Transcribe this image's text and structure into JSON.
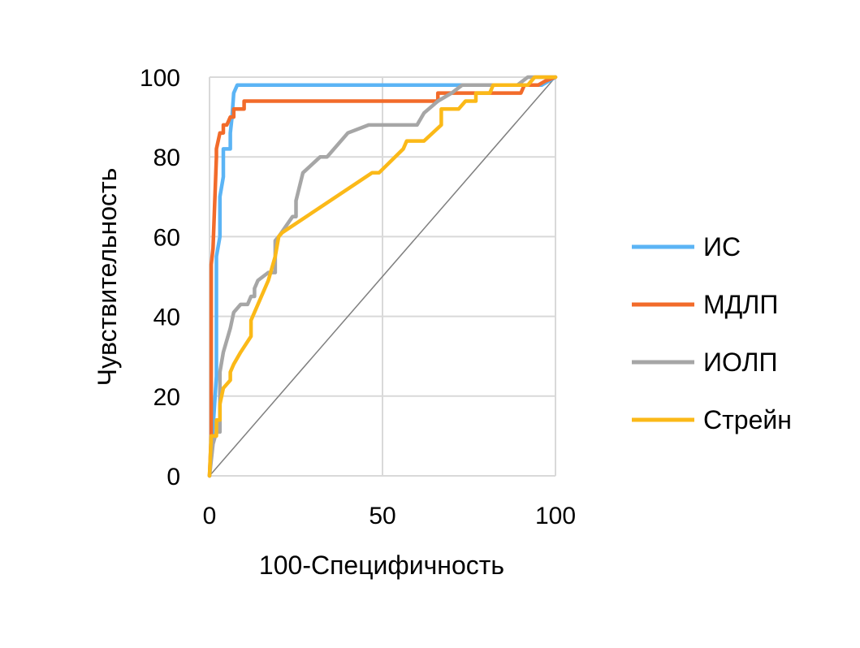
{
  "chart_data": {
    "type": "line",
    "xlabel": "100-Специфичность",
    "ylabel": "Чувствительность",
    "xlim": [
      0,
      100
    ],
    "ylim": [
      0,
      100
    ],
    "x_ticks": [
      "0",
      "50",
      "100"
    ],
    "y_ticks": [
      "0",
      "20",
      "40",
      "60",
      "80",
      "100"
    ],
    "grid": true,
    "legend_position": "right",
    "reference_line": {
      "from": [
        0,
        0
      ],
      "to": [
        100,
        100
      ],
      "color": "#7f7f7f"
    },
    "series": [
      {
        "name": "ИС",
        "color": "#5bb4f5",
        "points": [
          [
            0,
            0
          ],
          [
            1,
            12
          ],
          [
            2,
            25
          ],
          [
            2,
            55
          ],
          [
            3,
            60
          ],
          [
            3,
            70
          ],
          [
            4,
            75
          ],
          [
            4,
            82
          ],
          [
            6,
            82
          ],
          [
            6,
            86
          ],
          [
            6.5,
            90
          ],
          [
            7,
            96
          ],
          [
            8,
            98
          ],
          [
            96,
            98
          ],
          [
            98,
            99
          ],
          [
            100,
            100
          ]
        ]
      },
      {
        "name": "МДЛП",
        "color": "#f26b2a",
        "points": [
          [
            0,
            0
          ],
          [
            0.5,
            10
          ],
          [
            0.5,
            53
          ],
          [
            1,
            57
          ],
          [
            2,
            80
          ],
          [
            2,
            82
          ],
          [
            3,
            86
          ],
          [
            4,
            86
          ],
          [
            4,
            88
          ],
          [
            5,
            88
          ],
          [
            6,
            90
          ],
          [
            7,
            90
          ],
          [
            7,
            92
          ],
          [
            10,
            92
          ],
          [
            10,
            94
          ],
          [
            66,
            94
          ],
          [
            66,
            96
          ],
          [
            86,
            96
          ],
          [
            90,
            96
          ],
          [
            91,
            98
          ],
          [
            95,
            98
          ],
          [
            97,
            99
          ],
          [
            100,
            100
          ]
        ]
      },
      {
        "name": "ИОЛП",
        "color": "#a6a6a6",
        "points": [
          [
            0,
            0
          ],
          [
            1,
            8
          ],
          [
            2,
            11
          ],
          [
            3,
            11
          ],
          [
            3,
            26
          ],
          [
            4,
            31
          ],
          [
            6,
            37
          ],
          [
            7,
            41
          ],
          [
            9,
            43
          ],
          [
            11,
            43
          ],
          [
            12,
            45
          ],
          [
            13,
            45
          ],
          [
            13,
            47
          ],
          [
            14,
            49
          ],
          [
            17,
            51
          ],
          [
            19,
            51
          ],
          [
            19,
            59
          ],
          [
            20,
            60
          ],
          [
            24,
            65
          ],
          [
            25,
            65
          ],
          [
            25,
            69
          ],
          [
            27,
            76
          ],
          [
            32,
            80
          ],
          [
            34,
            80
          ],
          [
            40,
            86
          ],
          [
            46,
            88
          ],
          [
            60,
            88
          ],
          [
            62,
            91
          ],
          [
            66,
            94
          ],
          [
            70,
            96
          ],
          [
            73,
            98
          ],
          [
            89,
            98
          ],
          [
            92,
            100
          ],
          [
            100,
            100
          ]
        ]
      },
      {
        "name": "Стрейн",
        "color": "#fbb918",
        "points": [
          [
            0,
            0
          ],
          [
            0.5,
            10
          ],
          [
            2,
            10
          ],
          [
            2,
            14
          ],
          [
            3,
            14
          ],
          [
            3,
            18
          ],
          [
            4,
            22
          ],
          [
            6,
            24
          ],
          [
            6,
            26
          ],
          [
            7,
            28
          ],
          [
            9,
            31
          ],
          [
            12,
            35
          ],
          [
            12,
            39
          ],
          [
            14,
            43
          ],
          [
            17,
            49
          ],
          [
            19,
            55
          ],
          [
            20,
            60
          ],
          [
            21,
            61
          ],
          [
            47,
            76
          ],
          [
            49,
            76
          ],
          [
            56,
            82
          ],
          [
            57,
            84
          ],
          [
            62,
            84
          ],
          [
            67,
            88
          ],
          [
            67,
            92
          ],
          [
            72,
            92
          ],
          [
            74,
            94
          ],
          [
            77,
            94
          ],
          [
            77,
            96
          ],
          [
            81,
            96
          ],
          [
            82,
            98
          ],
          [
            92,
            98
          ],
          [
            93,
            99
          ],
          [
            94,
            100
          ],
          [
            100,
            100
          ]
        ]
      }
    ]
  }
}
